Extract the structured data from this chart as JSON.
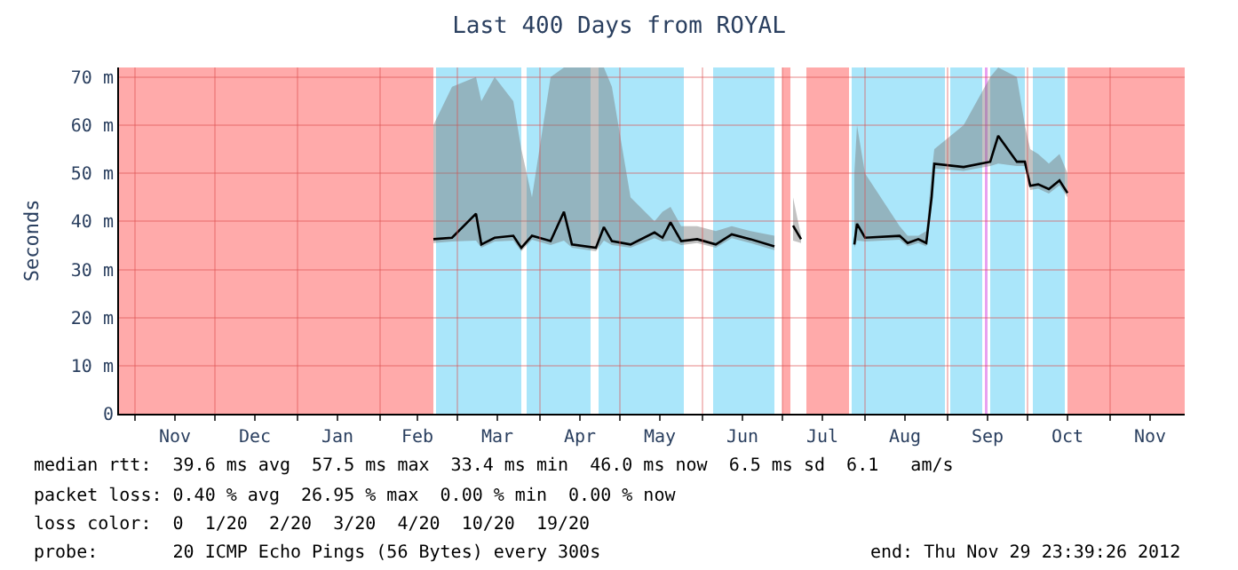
{
  "chart_data": {
    "type": "line",
    "title": "Last 400 Days from ROYAL",
    "ylabel": "Seconds",
    "x": [
      "2012-02-21",
      "2012-02-28",
      "2012-03-08",
      "2012-03-10",
      "2012-03-15",
      "2012-03-22",
      "2012-03-25",
      "2012-03-29",
      "2012-04-05",
      "2012-04-10",
      "2012-04-13",
      "2012-04-22",
      "2012-04-25",
      "2012-04-28",
      "2012-05-05",
      "2012-05-14",
      "2012-05-17",
      "2012-05-20",
      "2012-05-24",
      "2012-05-30",
      "2012-06-06",
      "2012-06-12",
      "2012-06-19",
      "2012-06-28",
      "2012-07-01",
      "2012-07-05",
      "2012-07-08",
      "2012-07-18",
      "2012-07-28",
      "2012-07-29",
      "2012-08-01",
      "2012-08-14",
      "2012-08-17",
      "2012-08-21",
      "2012-08-24",
      "2012-08-26",
      "2012-08-27",
      "2012-09-07",
      "2012-09-17",
      "2012-09-20",
      "2012-09-27",
      "2012-09-30",
      "2012-10-02",
      "2012-10-05",
      "2012-10-09",
      "2012-10-13",
      "2012-10-16"
    ],
    "series": [
      {
        "color": "#000000",
        "values": [
          36.3,
          36.6,
          41.6,
          35.2,
          36.6,
          37.0,
          34.5,
          37.0,
          35.9,
          42.0,
          35.2,
          34.5,
          38.8,
          35.9,
          35.2,
          37.7,
          36.6,
          39.8,
          35.9,
          36.3,
          35.2,
          37.3,
          36.3,
          34.8,
          null,
          39.1,
          36.3,
          null,
          35.2,
          39.5,
          36.6,
          37.0,
          35.5,
          36.3,
          35.5,
          45.0,
          52.0,
          51.3,
          52.4,
          57.8,
          52.4,
          52.4,
          47.4,
          47.7,
          46.7,
          48.5,
          45.9
        ],
        "lower": [
          35.5,
          35.8,
          36.0,
          34.5,
          35.8,
          36.0,
          33.8,
          36.2,
          35.1,
          36.0,
          34.5,
          33.8,
          36.0,
          35.1,
          34.5,
          36.5,
          35.8,
          36.0,
          35.1,
          35.5,
          34.5,
          36.5,
          35.5,
          34.0,
          null,
          36.0,
          35.5,
          null,
          34.5,
          36.0,
          35.8,
          36.2,
          34.8,
          35.5,
          34.8,
          44.0,
          51.0,
          50.5,
          51.5,
          52.0,
          51.5,
          51.5,
          46.5,
          46.8,
          45.8,
          47.5,
          45.0
        ],
        "upper": [
          60,
          68,
          70,
          65,
          70,
          65,
          55,
          45,
          70,
          72,
          72,
          72,
          72,
          68,
          45,
          40,
          42,
          43,
          39,
          39,
          38,
          39,
          38,
          37,
          null,
          45,
          37,
          null,
          50,
          60,
          50,
          39,
          37,
          37,
          38,
          50,
          55,
          60,
          70,
          72,
          70,
          60,
          55,
          54,
          52,
          54,
          50
        ]
      }
    ],
    "xlim": [
      "2011-10-26",
      "2012-11-29"
    ],
    "xticks": [
      {
        "value": "2011-11-01",
        "label": null
      },
      {
        "value": "2011-11-16",
        "label": "Nov"
      },
      {
        "value": "2011-12-01",
        "label": null
      },
      {
        "value": "2011-12-16",
        "label": "Dec"
      },
      {
        "value": "2012-01-01",
        "label": null
      },
      {
        "value": "2012-01-16",
        "label": "Jan"
      },
      {
        "value": "2012-02-01",
        "label": null
      },
      {
        "value": "2012-02-15",
        "label": "Feb"
      },
      {
        "value": "2012-03-01",
        "label": null
      },
      {
        "value": "2012-03-16",
        "label": "Mar"
      },
      {
        "value": "2012-04-01",
        "label": null
      },
      {
        "value": "2012-04-16",
        "label": "Apr"
      },
      {
        "value": "2012-05-01",
        "label": null
      },
      {
        "value": "2012-05-16",
        "label": "May"
      },
      {
        "value": "2012-06-01",
        "label": null
      },
      {
        "value": "2012-06-16",
        "label": "Jun"
      },
      {
        "value": "2012-07-01",
        "label": null
      },
      {
        "value": "2012-07-16",
        "label": "Jul"
      },
      {
        "value": "2012-08-01",
        "label": null
      },
      {
        "value": "2012-08-16",
        "label": "Aug"
      },
      {
        "value": "2012-09-01",
        "label": null
      },
      {
        "value": "2012-09-16",
        "label": "Sep"
      },
      {
        "value": "2012-10-01",
        "label": null
      },
      {
        "value": "2012-10-16",
        "label": "Oct"
      },
      {
        "value": "2012-11-01",
        "label": null
      },
      {
        "value": "2012-11-16",
        "label": "Nov"
      }
    ],
    "ylim": [
      0,
      72
    ],
    "yticks": [
      0,
      {
        "value": 10,
        "label": "10 m"
      },
      {
        "value": 20,
        "label": "20 m"
      },
      {
        "value": 30,
        "label": "30 m"
      },
      {
        "value": 40,
        "label": "40 m"
      },
      {
        "value": 50,
        "label": "50 m"
      },
      {
        "value": 60,
        "label": "60 m"
      },
      {
        "value": 70,
        "label": "70 m"
      }
    ],
    "grid": true,
    "bands": [
      {
        "axis": "x",
        "from": "2011-10-26",
        "to": "2012-02-21",
        "color": "#ffaaaa"
      },
      {
        "axis": "x",
        "from": "2012-02-22",
        "to": "2012-03-25",
        "color": "#aae6fa"
      },
      {
        "axis": "x",
        "from": "2012-03-27",
        "to": "2012-04-20",
        "color": "#aae6fa"
      },
      {
        "axis": "x",
        "from": "2012-04-23",
        "to": "2012-05-25",
        "color": "#aae6fa"
      },
      {
        "axis": "x",
        "from": "2012-06-05",
        "to": "2012-06-28",
        "color": "#aae6fa"
      },
      {
        "axis": "x",
        "from": "2012-07-01",
        "to": "2012-07-04",
        "color": "#ffaaaa"
      },
      {
        "axis": "x",
        "from": "2012-07-10",
        "to": "2012-07-26",
        "color": "#ffaaaa"
      },
      {
        "axis": "x",
        "from": "2012-07-27",
        "to": "2012-08-31",
        "color": "#aae6fa"
      },
      {
        "axis": "x",
        "from": "2012-09-02",
        "to": "2012-09-14",
        "color": "#aae6fa"
      },
      {
        "axis": "x",
        "from": "2012-09-15",
        "to": "2012-09-16",
        "color": "#e8a0f0"
      },
      {
        "axis": "x",
        "from": "2012-09-17",
        "to": "2012-09-30",
        "color": "#aae6fa"
      },
      {
        "axis": "x",
        "from": "2012-10-03",
        "to": "2012-10-15",
        "color": "#aae6fa"
      },
      {
        "axis": "x",
        "from": "2012-10-16",
        "to": "2012-11-29",
        "color": "#ffaaaa"
      }
    ],
    "annotations": [
      "median rtt:  39.6 ms avg  57.5 ms max  33.4 ms min  46.0 ms now  6.5 ms sd  6.1   am/s",
      "packet loss: 0.40 % avg  26.95 % max  0.00 % min  0.00 % now",
      "loss color:  0  1/20  2/20  3/20  4/20  10/20  19/20",
      "probe:       20 ICMP Echo Pings (56 Bytes) every 300s",
      "end: Thu Nov 29 23:39:26 2012"
    ]
  }
}
